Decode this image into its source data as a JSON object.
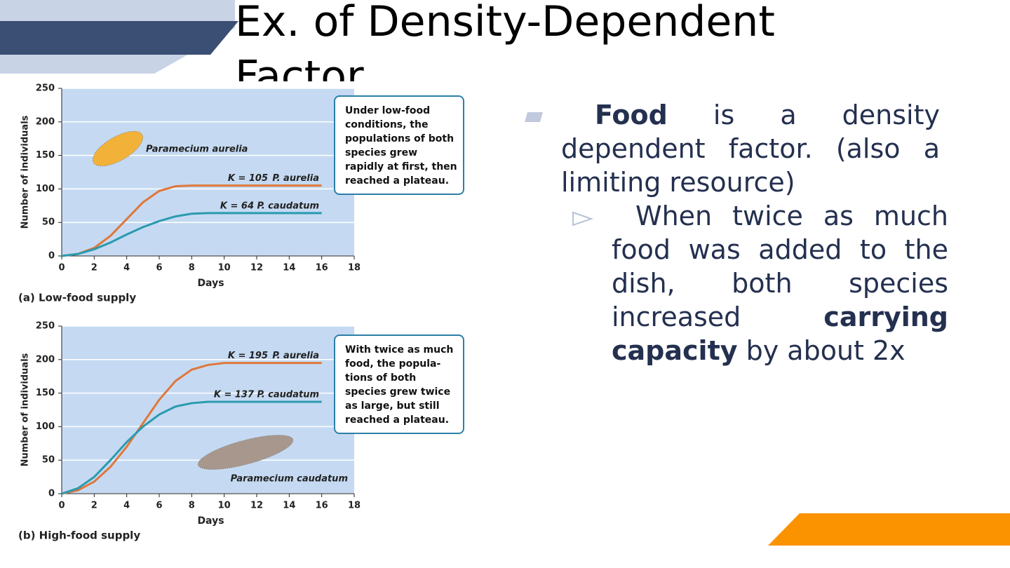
{
  "title": "Ex. of Density-Dependent Factor",
  "chart_data": [
    {
      "type": "line",
      "caption": "(a) Low-food supply",
      "xlabel": "Days",
      "ylabel": "Number of individuals",
      "x": [
        0,
        1,
        2,
        3,
        4,
        5,
        6,
        7,
        8,
        9,
        10,
        11,
        12,
        13,
        14,
        15,
        16
      ],
      "series": [
        {
          "name": "P. aurelia",
          "k_label": "K = 105",
          "color": "#e0773a",
          "values": [
            0,
            3,
            12,
            30,
            55,
            80,
            97,
            104,
            105,
            105,
            105,
            105,
            105,
            105,
            105,
            105,
            105
          ]
        },
        {
          "name": "P. caudatum",
          "k_label": "K = 64",
          "color": "#2a9ab0",
          "values": [
            0,
            3,
            10,
            20,
            32,
            43,
            52,
            59,
            63,
            64,
            64,
            64,
            64,
            64,
            64,
            64,
            64
          ]
        }
      ],
      "xlim": [
        0,
        18
      ],
      "ylim": [
        0,
        250
      ],
      "xticks": [
        0,
        2,
        4,
        6,
        8,
        10,
        12,
        14,
        16,
        18
      ],
      "yticks": [
        0,
        50,
        100,
        150,
        200,
        250
      ],
      "grid": true,
      "organism_label": "Paramecium aurelia",
      "callout": "Under low-food conditions, the populations of both species grew rapidly at first, then reached a plateau."
    },
    {
      "type": "line",
      "caption": "(b) High-food supply",
      "xlabel": "Days",
      "ylabel": "Number of individuals",
      "x": [
        0,
        1,
        2,
        3,
        4,
        5,
        6,
        7,
        8,
        9,
        10,
        11,
        12,
        13,
        14,
        15,
        16
      ],
      "series": [
        {
          "name": "P. aurelia",
          "k_label": "K = 195",
          "color": "#e0773a",
          "values": [
            0,
            5,
            18,
            40,
            70,
            105,
            140,
            168,
            185,
            192,
            195,
            195,
            195,
            195,
            195,
            195,
            195
          ]
        },
        {
          "name": "P. caudatum",
          "k_label": "K = 137",
          "color": "#2a9ab0",
          "values": [
            0,
            8,
            25,
            50,
            77,
            100,
            118,
            130,
            135,
            137,
            137,
            137,
            137,
            137,
            137,
            137,
            137
          ]
        }
      ],
      "xlim": [
        0,
        18
      ],
      "ylim": [
        0,
        250
      ],
      "xticks": [
        0,
        2,
        4,
        6,
        8,
        10,
        12,
        14,
        16,
        18
      ],
      "yticks": [
        0,
        50,
        100,
        150,
        200,
        250
      ],
      "grid": true,
      "organism_label": "Paramecium caudatum",
      "callout": "With twice as much food, the popula-tions of both species grew twice as large, but still reached a plateau."
    }
  ],
  "bullets": [
    {
      "lead": "Food",
      "text": "is a density dependent factor. (also a limiting resource)"
    },
    {
      "text": "When twice as much food was added to the dish, both species increased",
      "bold": "carrying capacity",
      "tail": "by about 2x"
    }
  ]
}
